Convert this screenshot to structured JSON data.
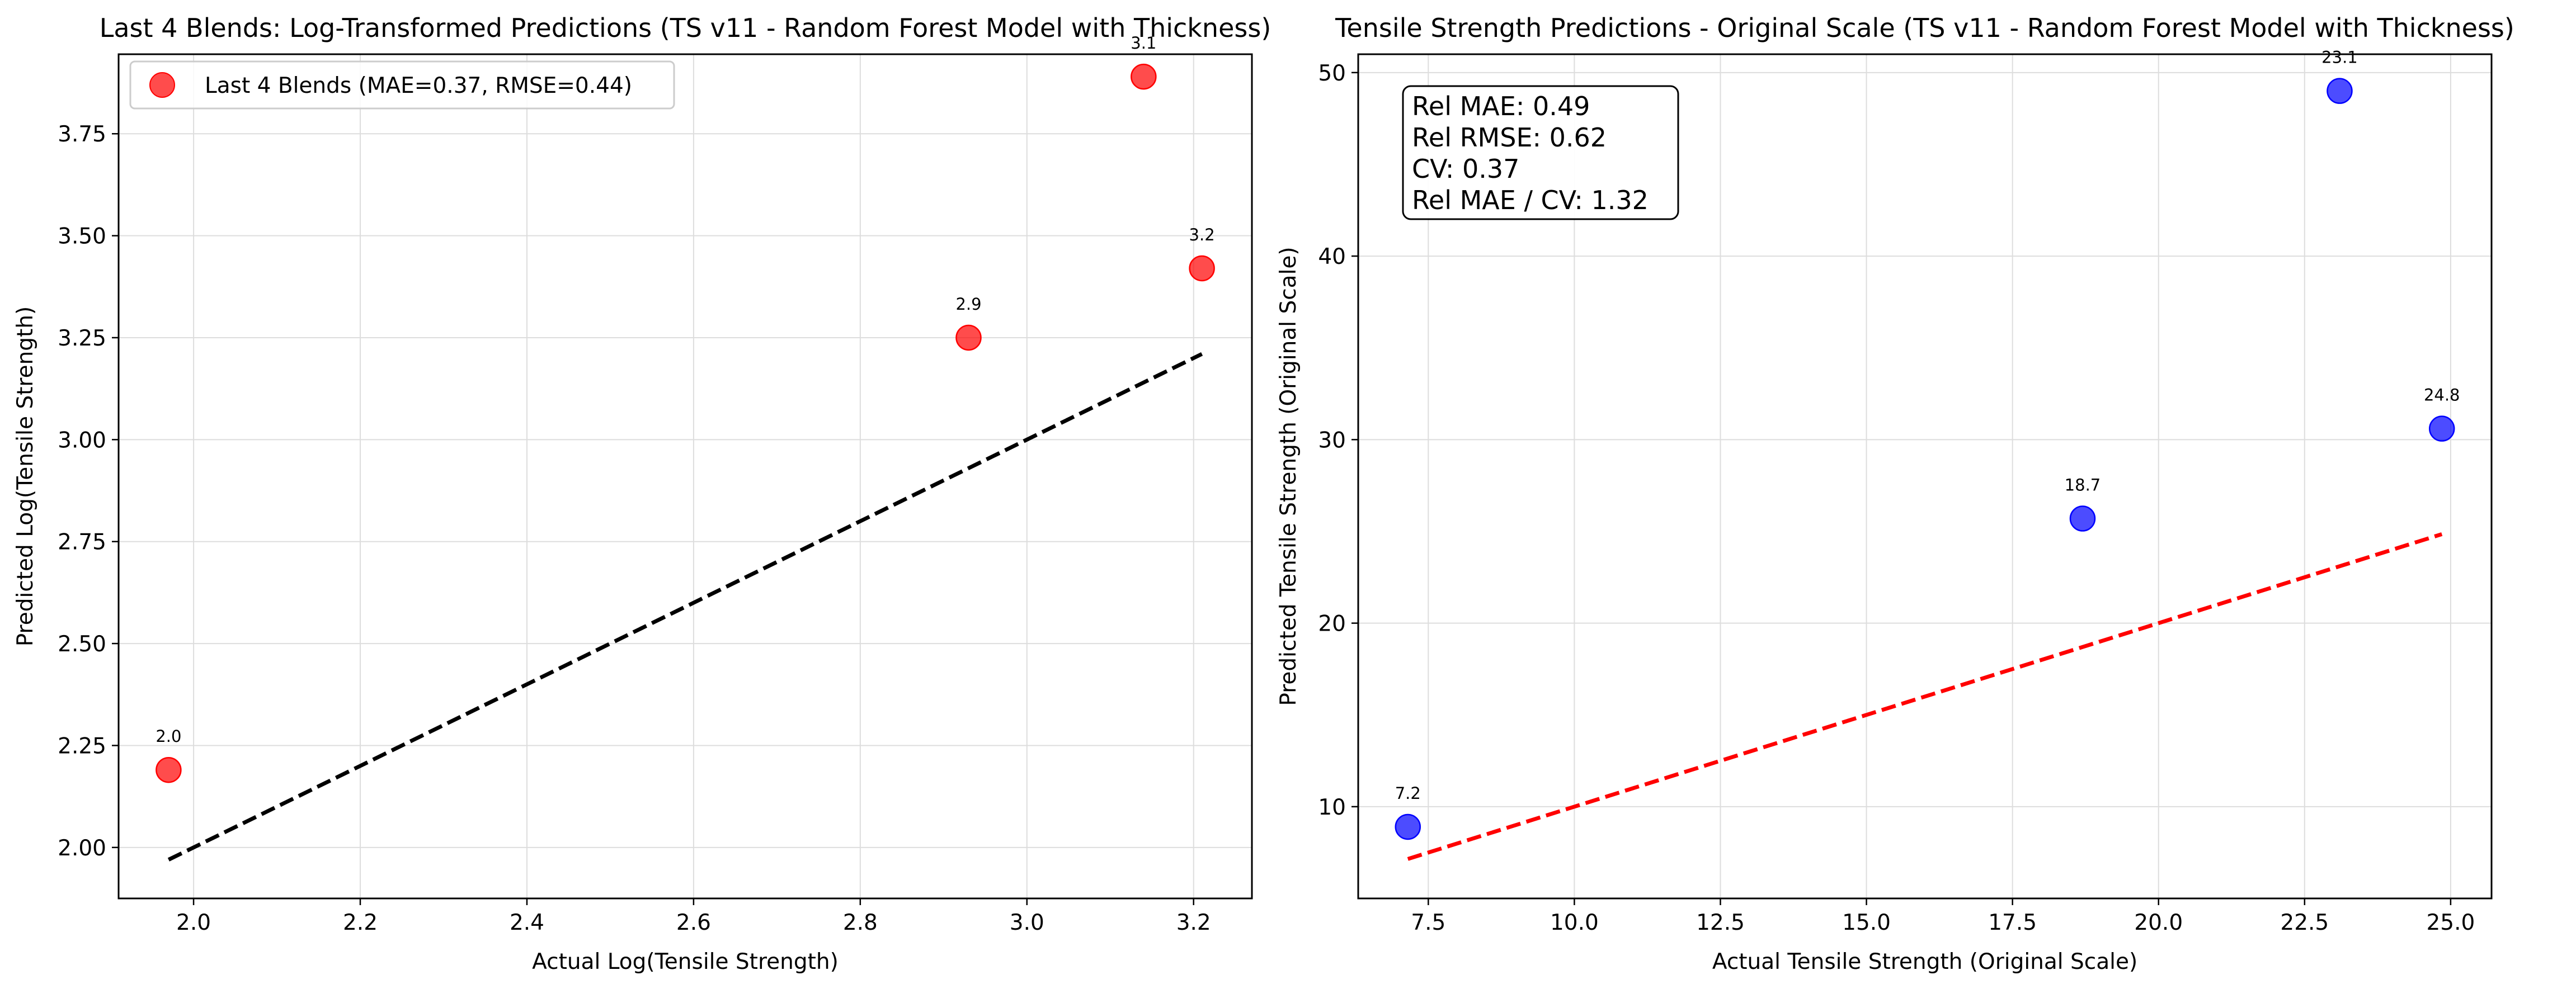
{
  "chart_data": [
    {
      "type": "scatter",
      "title": "Last 4 Blends: Log-Transformed Predictions (TS v11 - Random Forest Model with Thickness)",
      "xlabel": "Actual Log(Tensile Strength)",
      "ylabel": "Predicted Log(Tensile Strength)",
      "xlim": [
        1.91,
        3.27
      ],
      "ylim": [
        1.875,
        3.945
      ],
      "xticks": [
        "2.0",
        "2.2",
        "2.4",
        "2.6",
        "2.8",
        "3.0",
        "3.2"
      ],
      "yticks": [
        "2.00",
        "2.25",
        "2.50",
        "2.75",
        "3.00",
        "3.25",
        "3.50",
        "3.75"
      ],
      "grid": true,
      "series": [
        {
          "name": "Last 4 Blends (MAE=0.37, RMSE=0.44)",
          "color": "#ff0000",
          "x": [
            1.97,
            2.93,
            3.14,
            3.21
          ],
          "y": [
            2.19,
            3.25,
            3.89,
            3.42
          ],
          "labels": [
            "2.0",
            "2.9",
            "3.1",
            "3.2"
          ]
        }
      ],
      "reference_line": {
        "x": [
          1.97,
          3.21
        ],
        "y": [
          1.97,
          3.21
        ],
        "color": "#000000",
        "style": "dashed"
      },
      "legend": {
        "position": "top-left"
      }
    },
    {
      "type": "scatter",
      "title": "Tensile Strength Predictions - Original Scale (TS v11 - Random Forest Model with Thickness)",
      "xlabel": "Actual Tensile Strength (Original Scale)",
      "ylabel": "Predicted Tensile Strength (Original Scale)",
      "xlim": [
        6.3,
        25.7
      ],
      "ylim": [
        5.0,
        51.0
      ],
      "xticks": [
        "7.5",
        "10.0",
        "12.5",
        "15.0",
        "17.5",
        "20.0",
        "22.5",
        "25.0"
      ],
      "yticks": [
        "10",
        "20",
        "30",
        "40",
        "50"
      ],
      "grid": true,
      "series": [
        {
          "name": "",
          "color": "#0000ff",
          "x": [
            7.15,
            18.7,
            23.1,
            24.85
          ],
          "y": [
            8.9,
            25.7,
            49.0,
            30.6
          ],
          "labels": [
            "7.2",
            "18.7",
            "23.1",
            "24.8"
          ]
        }
      ],
      "reference_line": {
        "x": [
          7.15,
          24.85
        ],
        "y": [
          7.15,
          24.85
        ],
        "color": "#ff0000",
        "style": "dashed"
      },
      "stats_box": {
        "position": "top-left",
        "lines": [
          "Rel MAE: 0.49",
          "Rel RMSE: 0.62",
          "CV: 0.37",
          "Rel MAE / CV: 1.32"
        ]
      }
    }
  ]
}
